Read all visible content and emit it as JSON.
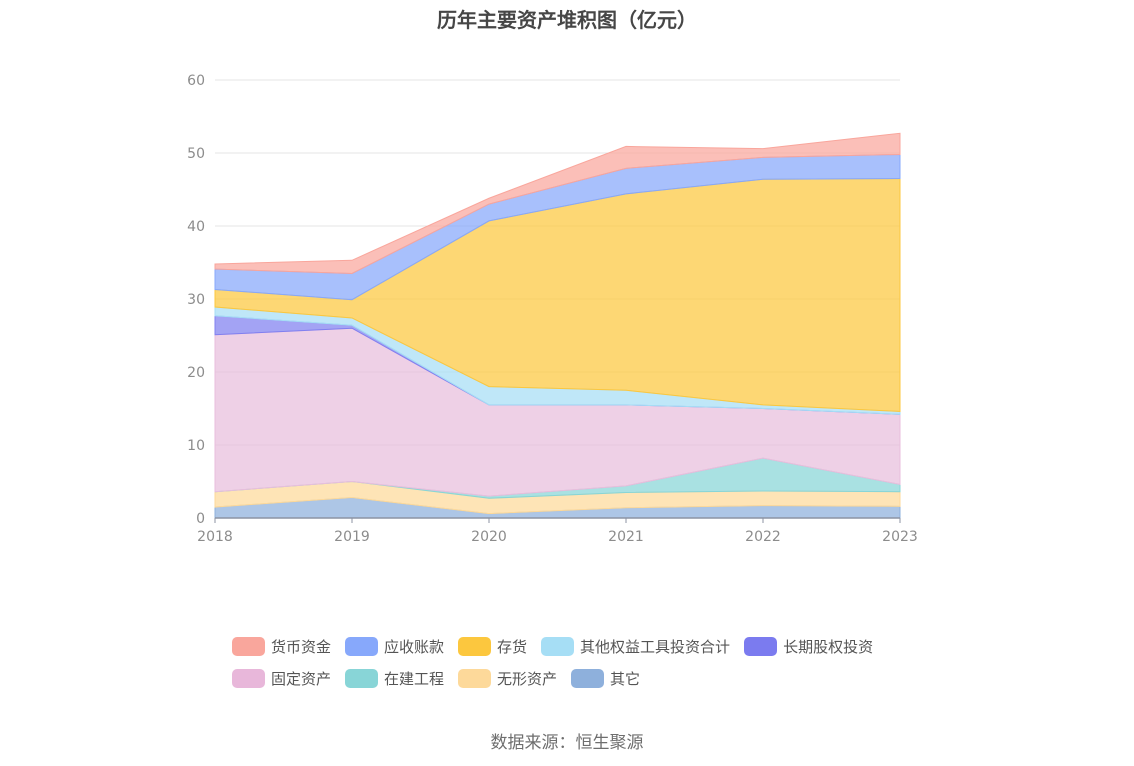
{
  "title": "历年主要资产堆积图（亿元）",
  "source": "数据来源：恒生聚源",
  "chart_data": {
    "type": "area",
    "stacked": true,
    "categories": [
      "2018",
      "2019",
      "2020",
      "2021",
      "2022",
      "2023"
    ],
    "ylim": [
      0,
      60
    ],
    "yticks": [
      0,
      10,
      20,
      30,
      40,
      50,
      60
    ],
    "grid": true,
    "legend_position": "bottom",
    "series": [
      {
        "name": "其它",
        "color": "#8eb0dc",
        "values": [
          1.5,
          2.8,
          0.6,
          1.4,
          1.7,
          1.6
        ]
      },
      {
        "name": "无形资产",
        "color": "#fdd99a",
        "values": [
          2.1,
          2.2,
          2.1,
          2.1,
          2.0,
          2.0
        ]
      },
      {
        "name": "在建工程",
        "color": "#88d5d7",
        "values": [
          0.0,
          0.0,
          0.3,
          0.9,
          4.5,
          1.0
        ]
      },
      {
        "name": "固定资产",
        "color": "#e8bedc",
        "values": [
          21.5,
          21.0,
          12.5,
          11.1,
          6.8,
          9.6
        ]
      },
      {
        "name": "长期股权投资",
        "color": "#8080f0",
        "values": [
          2.6,
          0.4,
          0.0,
          0.0,
          0.0,
          0.0
        ]
      },
      {
        "name": "其他权益工具投资合计",
        "color": "#a6def5",
        "values": [
          1.2,
          1.0,
          2.5,
          2.0,
          0.5,
          0.4
        ]
      },
      {
        "name": "存货",
        "color": "#fcc73e",
        "values": [
          2.4,
          2.5,
          22.7,
          26.9,
          30.9,
          31.9
        ]
      },
      {
        "name": "应收账款",
        "color": "#87a8fb",
        "values": [
          2.8,
          3.6,
          2.3,
          3.5,
          3.0,
          3.3
        ]
      },
      {
        "name": "货币资金",
        "color": "#f9a69c",
        "values": [
          0.7,
          1.8,
          0.8,
          3.0,
          1.2,
          2.9
        ]
      }
    ]
  },
  "legend": {
    "rows": [
      [
        {
          "label": "货币资金",
          "color": "#f9a69c"
        },
        {
          "label": "应收账款",
          "color": "#87a8fb"
        },
        {
          "label": "存货",
          "color": "#fcc73e"
        },
        {
          "label": "其他权益工具投资合计",
          "color": "#a6def5"
        },
        {
          "label": "长期股权投资",
          "color": "#7b7bef"
        }
      ],
      [
        {
          "label": "固定资产",
          "color": "#e8b7da"
        },
        {
          "label": "在建工程",
          "color": "#88d5d7"
        },
        {
          "label": "无形资产",
          "color": "#fdd99a"
        },
        {
          "label": "其它",
          "color": "#8eb0dc"
        }
      ]
    ]
  }
}
